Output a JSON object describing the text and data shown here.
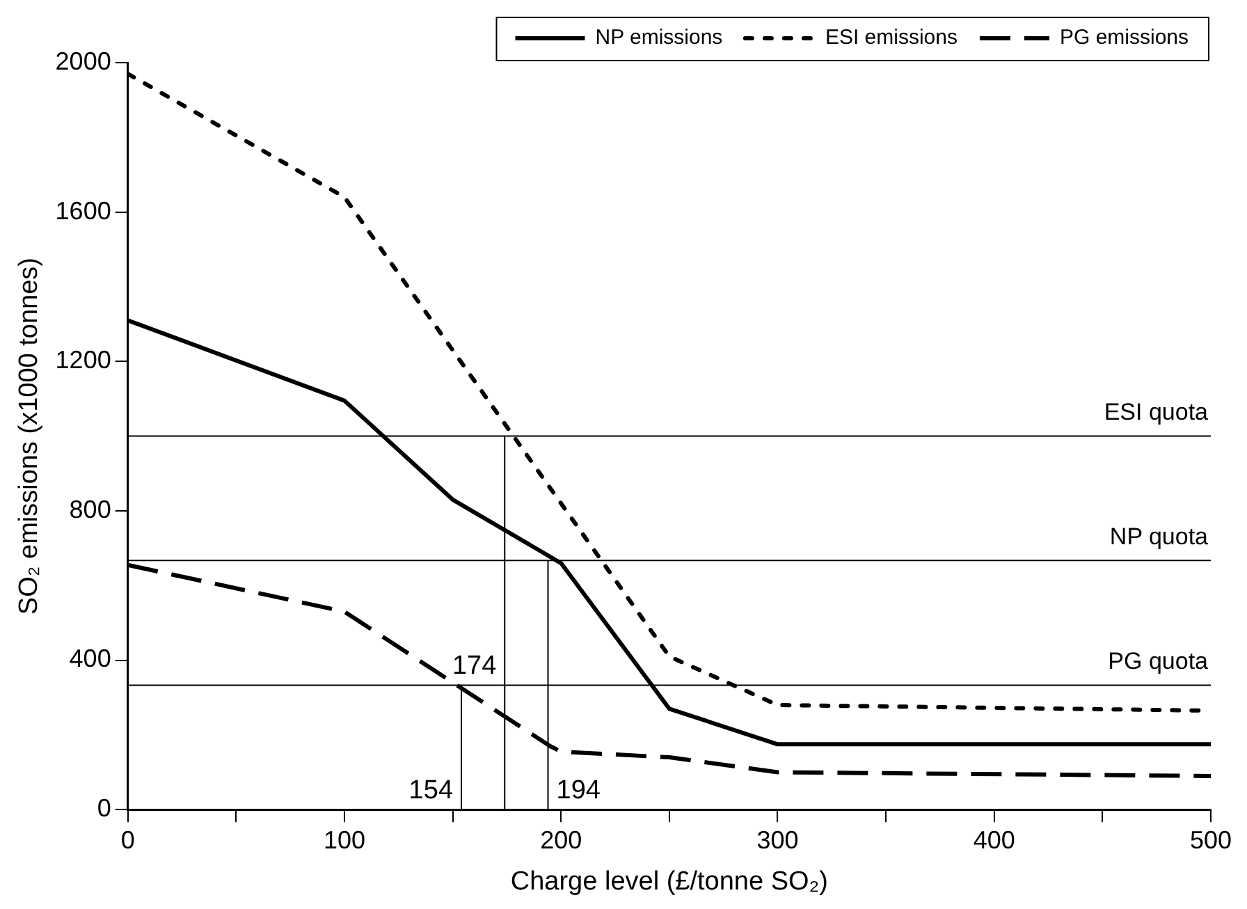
{
  "chart_data": {
    "type": "line",
    "xlabel": "Charge level (£/tonne SO₂)",
    "ylabel": "SO₂ emissions (x1000 tonnes)",
    "xlim": [
      0,
      500
    ],
    "ylim": [
      0,
      2000
    ],
    "xticks": [
      0,
      {
        "value": 50,
        "label": null
      },
      100,
      {
        "value": 150,
        "label": null
      },
      200,
      {
        "value": 250,
        "label": null
      },
      300,
      {
        "value": 350,
        "label": null
      },
      400,
      {
        "value": 450,
        "label": null
      },
      500
    ],
    "yticks": [
      0,
      400,
      800,
      1200,
      1600,
      2000
    ],
    "grid": false,
    "legend": "top right",
    "marker": "none",
    "series": [
      {
        "name": "NP emissions",
        "color": "#000000",
        "line_style": "solid",
        "x": [
          0,
          100,
          150,
          200,
          250,
          300,
          500
        ],
        "values": [
          1310,
          1095,
          830,
          660,
          270,
          175,
          175
        ]
      },
      {
        "name": "ESI emissions",
        "color": "#000000",
        "line_style": "dotted",
        "x": [
          0,
          100,
          250,
          300,
          500
        ],
        "values": [
          1970,
          1640,
          410,
          280,
          265
        ]
      },
      {
        "name": "PG emissions",
        "color": "#000000",
        "line_style": "dashed",
        "x": [
          0,
          100,
          195,
          200,
          250,
          300,
          500
        ],
        "values": [
          655,
          530,
          170,
          155,
          140,
          100,
          90
        ]
      },
      {
        "color": "#000000",
        "line_style": "solid",
        "x": [
          154,
          154
        ],
        "values": [
          0,
          333
        ]
      },
      {
        "color": "#000000",
        "line_style": "solid",
        "x": [
          174,
          174
        ],
        "values": [
          0,
          1000
        ]
      },
      {
        "color": "#000000",
        "line_style": "solid",
        "x": [
          194,
          194
        ],
        "values": [
          0,
          667
        ]
      }
    ],
    "ref_lines": [
      {
        "axis": "y",
        "value": 1000,
        "label": "ESI quota"
      },
      {
        "axis": "y",
        "value": 667,
        "label": "NP quota"
      },
      {
        "axis": "y",
        "value": 333,
        "label": "PG quota"
      }
    ],
    "annotations": [
      {
        "text": "154",
        "x": 154,
        "y": 0
      },
      {
        "text": "174",
        "x": 174,
        "y": 333
      },
      {
        "text": "194",
        "x": 194,
        "y": 0
      }
    ]
  }
}
